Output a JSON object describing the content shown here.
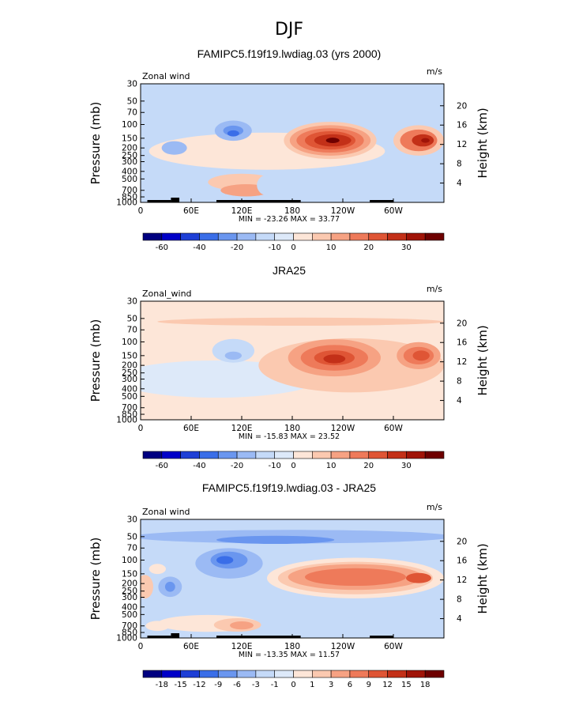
{
  "figure_title": "DJF",
  "palette": {
    "ramp": [
      "#000080",
      "#0000c8",
      "#1e3fd6",
      "#3a6ee8",
      "#6a96ef",
      "#9bbaf4",
      "#c5daf8",
      "#dde9f9",
      "#fde6d8",
      "#fbc9b0",
      "#f6a283",
      "#ee7a5a",
      "#df5535",
      "#c33018",
      "#a01408",
      "#6e0000"
    ],
    "ramp_labels_std": [
      "",
      "-60",
      "",
      "-40",
      "",
      "-20",
      "",
      "-10",
      "0",
      "",
      "10",
      "",
      "20",
      "",
      "30",
      ""
    ],
    "ramp_labels_diff": [
      "",
      "-18",
      "-15",
      "-12",
      "-9",
      "-6",
      "-3",
      "-1",
      "0",
      "1",
      "3",
      "6",
      "9",
      "12",
      "15",
      "18"
    ]
  },
  "chart_data": [
    {
      "type": "heatmap",
      "title": "FAMIPC5.f19f19.lwdiag.03 (yrs 2000)",
      "left_label": "Zonal wind",
      "right_label": "m/s",
      "ylabel": "Pressure (mb)",
      "y2label": "Height (km)",
      "y_ticks": [
        "30",
        "50",
        "70",
        "100",
        "150",
        "200",
        "250",
        "300",
        "400",
        "500",
        "700",
        "850",
        "1000"
      ],
      "y_tick_values": [
        30,
        50,
        70,
        100,
        150,
        200,
        250,
        300,
        400,
        500,
        700,
        850,
        1000
      ],
      "y2_ticks": [
        "4",
        "8",
        "12",
        "16",
        "20"
      ],
      "y2_tick_values": [
        4,
        8,
        12,
        16,
        20
      ],
      "x_ticks": [
        "0",
        "60E",
        "120E",
        "180",
        "120W",
        "60W"
      ],
      "x_tick_values": [
        0,
        60,
        120,
        180,
        240,
        300
      ],
      "xlim": [
        0,
        360
      ],
      "ylim": [
        1000,
        30
      ],
      "y_scale": "log",
      "min_max": "MIN = -23.26   MAX =  33.77",
      "colorbar": "std",
      "background_level": 6,
      "blobs": [
        {
          "lon": 150,
          "p": 220,
          "rx": 140,
          "rp": 0.55,
          "level": 8
        },
        {
          "lon": 120,
          "p": 550,
          "rx": 40,
          "rp": 0.25,
          "level": 9
        },
        {
          "lon": 125,
          "p": 700,
          "rx": 30,
          "rp": 0.18,
          "level": 10
        },
        {
          "lon": 40,
          "p": 200,
          "rx": 15,
          "rp": 0.2,
          "level": 5
        },
        {
          "lon": 110,
          "p": 120,
          "rx": 22,
          "rp": 0.3,
          "level": 5
        },
        {
          "lon": 110,
          "p": 120,
          "rx": 12,
          "rp": 0.15,
          "level": 4
        },
        {
          "lon": 110,
          "p": 130,
          "rx": 7,
          "rp": 0.09,
          "level": 3
        },
        {
          "lon": 150,
          "p": 600,
          "rx": 12,
          "rp": 0.3,
          "level": 6
        },
        {
          "lon": 300,
          "p": 500,
          "rx": 30,
          "rp": 0.3,
          "level": 6
        },
        {
          "lon": 225,
          "p": 160,
          "rx": 55,
          "rp": 0.55,
          "level": 9
        },
        {
          "lon": 225,
          "p": 160,
          "rx": 48,
          "rp": 0.45,
          "level": 10
        },
        {
          "lon": 225,
          "p": 160,
          "rx": 40,
          "rp": 0.36,
          "level": 11
        },
        {
          "lon": 225,
          "p": 160,
          "rx": 30,
          "rp": 0.27,
          "level": 12
        },
        {
          "lon": 228,
          "p": 160,
          "rx": 22,
          "rp": 0.18,
          "level": 13
        },
        {
          "lon": 228,
          "p": 160,
          "rx": 8,
          "rp": 0.08,
          "level": 15
        },
        {
          "lon": 330,
          "p": 160,
          "rx": 30,
          "rp": 0.45,
          "level": 9
        },
        {
          "lon": 330,
          "p": 160,
          "rx": 22,
          "rp": 0.32,
          "level": 11
        },
        {
          "lon": 335,
          "p": 160,
          "rx": 13,
          "rp": 0.18,
          "level": 13
        },
        {
          "lon": 338,
          "p": 160,
          "rx": 5,
          "rp": 0.07,
          "level": 14
        }
      ],
      "topo": [
        [
          8,
          36
        ],
        [
          36,
          46
        ],
        [
          90,
          190
        ],
        [
          272,
          300
        ]
      ]
    },
    {
      "type": "heatmap",
      "title": "JRA25",
      "left_label": "Zonal_wind",
      "right_label": "m/s",
      "ylabel": "Pressure (mb)",
      "y2label": "Height (km)",
      "y_ticks": [
        "30",
        "50",
        "70",
        "100",
        "150",
        "200",
        "250",
        "300",
        "400",
        "500",
        "700",
        "850",
        "1000"
      ],
      "y_tick_values": [
        30,
        50,
        70,
        100,
        150,
        200,
        250,
        300,
        400,
        500,
        700,
        850,
        1000
      ],
      "y2_ticks": [
        "4",
        "8",
        "12",
        "16",
        "20"
      ],
      "y2_tick_values": [
        4,
        8,
        12,
        16,
        20
      ],
      "x_ticks": [
        "0",
        "60E",
        "120E",
        "180",
        "120W",
        "60W"
      ],
      "x_tick_values": [
        0,
        60,
        120,
        180,
        240,
        300
      ],
      "xlim": [
        0,
        360
      ],
      "ylim": [
        1000,
        30
      ],
      "y_scale": "log",
      "min_max": "MIN = -15.83   MAX =  23.52",
      "colorbar": "std",
      "background_level": 8,
      "blobs": [
        {
          "lon": 90,
          "p": 300,
          "rx": 120,
          "rp": 0.55,
          "level": 7
        },
        {
          "lon": 110,
          "p": 130,
          "rx": 25,
          "rp": 0.35,
          "level": 6
        },
        {
          "lon": 110,
          "p": 150,
          "rx": 10,
          "rp": 0.12,
          "level": 5
        },
        {
          "lon": 250,
          "p": 200,
          "rx": 110,
          "rp": 0.8,
          "level": 9
        },
        {
          "lon": 230,
          "p": 160,
          "rx": 55,
          "rp": 0.55,
          "level": 10
        },
        {
          "lon": 230,
          "p": 160,
          "rx": 40,
          "rp": 0.38,
          "level": 11
        },
        {
          "lon": 230,
          "p": 160,
          "rx": 24,
          "rp": 0.22,
          "level": 12
        },
        {
          "lon": 230,
          "p": 165,
          "rx": 13,
          "rp": 0.13,
          "level": 13
        },
        {
          "lon": 330,
          "p": 150,
          "rx": 26,
          "rp": 0.4,
          "level": 10
        },
        {
          "lon": 330,
          "p": 150,
          "rx": 18,
          "rp": 0.26,
          "level": 11
        },
        {
          "lon": 333,
          "p": 150,
          "rx": 10,
          "rp": 0.15,
          "level": 12
        },
        {
          "lon": 190,
          "p": 55,
          "rx": 170,
          "rp": 0.12,
          "level": 9
        }
      ],
      "topo": []
    },
    {
      "type": "heatmap",
      "title": "FAMIPC5.f19f19.lwdiag.03 - JRA25",
      "left_label": "Zonal wind",
      "right_label": "m/s",
      "ylabel": "Pressure (mb)",
      "y2label": "Height (km)",
      "y_ticks": [
        "30",
        "50",
        "70",
        "100",
        "150",
        "200",
        "250",
        "300",
        "400",
        "500",
        "700",
        "850",
        "1000"
      ],
      "y_tick_values": [
        30,
        50,
        70,
        100,
        150,
        200,
        250,
        300,
        400,
        500,
        700,
        850,
        1000
      ],
      "y2_ticks": [
        "4",
        "8",
        "12",
        "16",
        "20"
      ],
      "y2_tick_values": [
        4,
        8,
        12,
        16,
        20
      ],
      "x_ticks": [
        "0",
        "60E",
        "120E",
        "180",
        "120W",
        "60W"
      ],
      "x_tick_values": [
        0,
        60,
        120,
        180,
        240,
        300
      ],
      "xlim": [
        0,
        360
      ],
      "ylim": [
        1000,
        30
      ],
      "y_scale": "log",
      "min_max": "MIN = -13.35   MAX =  11.57",
      "colorbar": "diff",
      "background_level": 6,
      "blobs": [
        {
          "lon": 180,
          "p": 50,
          "rx": 190,
          "rp": 0.2,
          "level": 5
        },
        {
          "lon": 160,
          "p": 55,
          "rx": 70,
          "rp": 0.12,
          "level": 4
        },
        {
          "lon": 105,
          "p": 110,
          "rx": 40,
          "rp": 0.45,
          "level": 5
        },
        {
          "lon": 105,
          "p": 100,
          "rx": 22,
          "rp": 0.25,
          "level": 4
        },
        {
          "lon": 100,
          "p": 100,
          "rx": 10,
          "rp": 0.12,
          "level": 3
        },
        {
          "lon": 35,
          "p": 220,
          "rx": 14,
          "rp": 0.3,
          "level": 5
        },
        {
          "lon": 35,
          "p": 220,
          "rx": 6,
          "rp": 0.15,
          "level": 4
        },
        {
          "lon": 255,
          "p": 170,
          "rx": 105,
          "rp": 0.6,
          "level": 8
        },
        {
          "lon": 255,
          "p": 170,
          "rx": 92,
          "rp": 0.48,
          "level": 9
        },
        {
          "lon": 255,
          "p": 165,
          "rx": 80,
          "rp": 0.38,
          "level": 10
        },
        {
          "lon": 255,
          "p": 165,
          "rx": 60,
          "rp": 0.26,
          "level": 11
        },
        {
          "lon": 330,
          "p": 170,
          "rx": 15,
          "rp": 0.15,
          "level": 12
        },
        {
          "lon": 250,
          "p": 450,
          "rx": 18,
          "rp": 0.2,
          "level": 6
        },
        {
          "lon": 80,
          "p": 650,
          "rx": 60,
          "rp": 0.25,
          "level": 8
        },
        {
          "lon": 115,
          "p": 680,
          "rx": 28,
          "rp": 0.2,
          "level": 9
        },
        {
          "lon": 120,
          "p": 690,
          "rx": 14,
          "rp": 0.12,
          "level": 10
        },
        {
          "lon": 5,
          "p": 220,
          "rx": 10,
          "rp": 0.35,
          "level": 9
        },
        {
          "lon": 20,
          "p": 130,
          "rx": 10,
          "rp": 0.15,
          "level": 8
        },
        {
          "lon": 20,
          "p": 700,
          "rx": 14,
          "rp": 0.15,
          "level": 8
        }
      ],
      "topo": [
        [
          8,
          36
        ],
        [
          36,
          46
        ],
        [
          90,
          190
        ],
        [
          272,
          300
        ]
      ]
    }
  ]
}
